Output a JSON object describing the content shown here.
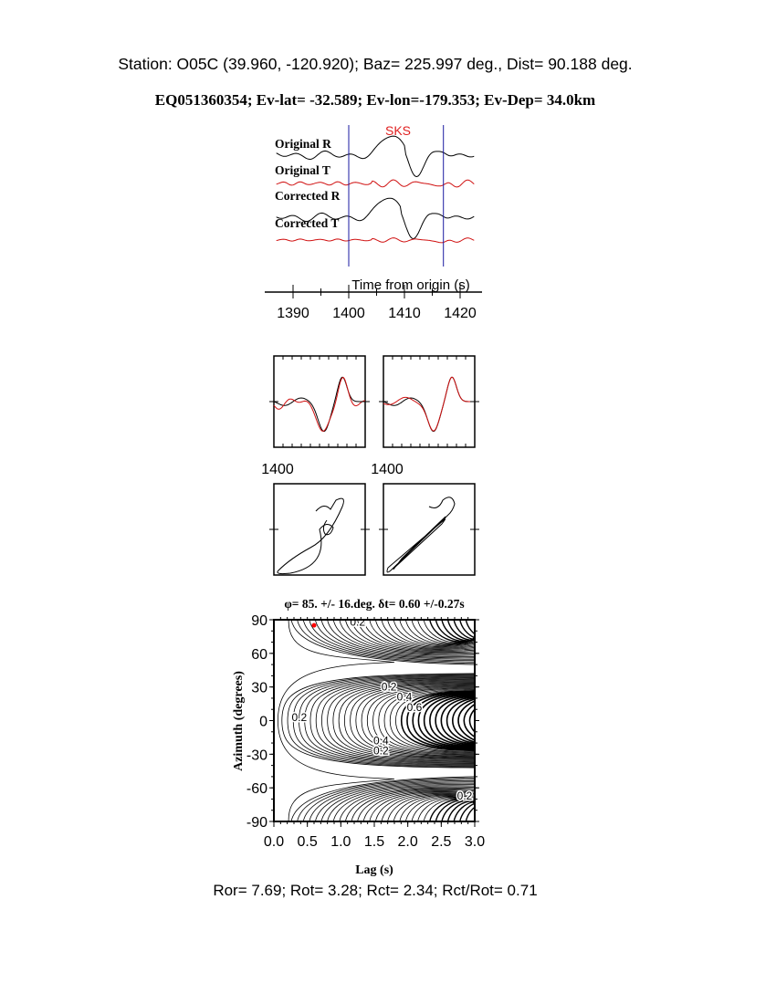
{
  "header": {
    "station_line": "Station: O05C (39.960, -120.920); Baz=  225.997 deg., Dist=   90.188 deg.",
    "event_line": "EQ051360354; Ev-lat= -32.589; Ev-lon=-179.353; Ev-Dep= 34.0km"
  },
  "chart_data": [
    {
      "type": "line",
      "title": "",
      "phase_label": "SKS",
      "trace_labels": [
        "Original R",
        "Original T",
        "Corrected R",
        "Corrected T"
      ],
      "xlabel": "Time from origin (s)",
      "xticks": [
        "1390",
        "1400",
        "1410",
        "1420"
      ],
      "xlim": [
        1385,
        1422
      ],
      "window_lines_s": [
        1400,
        1417
      ],
      "colors": {
        "radial": "#000000",
        "transverse": "#d01010",
        "window": "#1a1aa0",
        "phase_label": "#e02020"
      }
    },
    {
      "type": "line",
      "title": "",
      "panels": [
        "original",
        "corrected"
      ],
      "xtick_label": "1400",
      "colors": {
        "fast": "#000000",
        "slow": "#d01010"
      }
    },
    {
      "type": "line",
      "title": "",
      "panels": [
        "particle-motion-original",
        "particle-motion-corrected"
      ]
    },
    {
      "type": "contour",
      "title": "φ= 85. +/- 16.deg. δt= 0.60 +/-0.27s",
      "xlabel": "Lag (s)",
      "ylabel": "Azimuth (degrees)",
      "xlim": [
        0,
        3
      ],
      "ylim": [
        -90,
        90
      ],
      "xticks": [
        "0.0",
        "0.5",
        "1.0",
        "1.5",
        "2.0",
        "2.5",
        "3.0"
      ],
      "yticks": [
        "90",
        "60",
        "30",
        "0",
        "-30",
        "-60",
        "-90"
      ],
      "contour_labels": [
        "0.2",
        "0.4",
        "0.6",
        "0.2",
        "0.4",
        "0.2",
        "0.2",
        "0.2"
      ],
      "best_fit": {
        "lag": 0.6,
        "azimuth": 85
      },
      "colors": {
        "best_fit": "#ff0000"
      }
    }
  ],
  "footer": {
    "ratios_line": "Ror= 7.69; Rot= 3.28; Rct= 2.34; Rct/Rot= 0.71"
  }
}
